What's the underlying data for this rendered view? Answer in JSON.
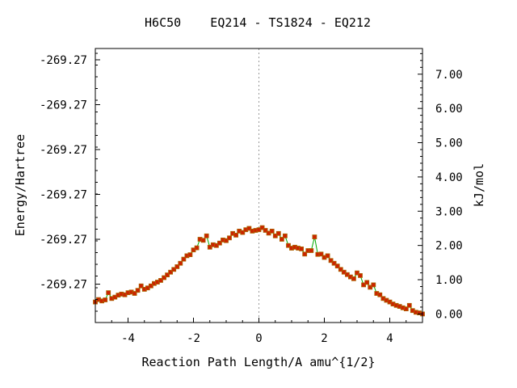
{
  "chart_data": {
    "type": "scatter",
    "title": "H6C50    EQ214 - TS1824 - EQ212",
    "xlabel": "Reaction Path Length/A amu^{1/2}",
    "ylabel": "Energy/Hartree",
    "y2label": "kJ/mol",
    "xlim": [
      -5,
      5
    ],
    "y2lim": [
      -0.25,
      7.75
    ],
    "x_ticks": [
      -4,
      -2,
      0,
      2,
      4
    ],
    "x_tick_labels": [
      "-4",
      "-2",
      "0",
      "2",
      "4"
    ],
    "y_tick_labels": [
      "-269.27",
      "-269.27",
      "-269.27",
      "-269.27",
      "-269.27",
      "-269.27"
    ],
    "y_tick_positions_kj": [
      7.42,
      6.11,
      4.8,
      3.49,
      2.18,
      0.87
    ],
    "y2_ticks": [
      0,
      1,
      2,
      3,
      4,
      5,
      6,
      7
    ],
    "y2_tick_labels": [
      "0.00",
      "1.00",
      "2.00",
      "3.00",
      "4.00",
      "5.00",
      "6.00",
      "7.00"
    ],
    "grid": false,
    "ts_marker_x": 0,
    "colors": {
      "line": "#00aa00",
      "marker": "#cc2200",
      "marker_edge": "#aa6600",
      "ts_line": "#999999"
    },
    "series": [
      {
        "x": [
          -5.0,
          -4.9,
          -4.8,
          -4.7,
          -4.6,
          -4.5,
          -4.4,
          -4.3,
          -4.2,
          -4.1,
          -4.0,
          -3.9,
          -3.8,
          -3.7,
          -3.6,
          -3.5,
          -3.4,
          -3.3,
          -3.2,
          -3.1,
          -3.0,
          -2.9,
          -2.8,
          -2.7,
          -2.6,
          -2.5,
          -2.4,
          -2.3,
          -2.2,
          -2.1,
          -2.0,
          -1.9,
          -1.8,
          -1.7,
          -1.6,
          -1.5,
          -1.4,
          -1.3,
          -1.2,
          -1.1,
          -1.0,
          -0.9,
          -0.8,
          -0.7,
          -0.6,
          -0.5,
          -0.4,
          -0.3,
          -0.2,
          -0.1,
          0.0,
          0.1,
          0.2,
          0.3,
          0.4,
          0.5,
          0.6,
          0.7,
          0.8,
          0.9,
          1.0,
          1.1,
          1.2,
          1.3,
          1.4,
          1.5,
          1.6,
          1.7,
          1.8,
          1.9,
          2.0,
          2.1,
          2.2,
          2.3,
          2.4,
          2.5,
          2.6,
          2.7,
          2.8,
          2.9,
          3.0,
          3.1,
          3.2,
          3.3,
          3.4,
          3.5,
          3.6,
          3.7,
          3.8,
          3.9,
          4.0,
          4.1,
          4.2,
          4.3,
          4.4,
          4.5,
          4.6,
          4.7,
          4.8,
          4.9,
          5.0
        ],
        "y": [
          0.35,
          0.42,
          0.38,
          0.41,
          0.62,
          0.45,
          0.49,
          0.55,
          0.58,
          0.56,
          0.62,
          0.64,
          0.6,
          0.69,
          0.82,
          0.72,
          0.76,
          0.82,
          0.89,
          0.93,
          0.98,
          1.06,
          1.14,
          1.22,
          1.3,
          1.38,
          1.48,
          1.6,
          1.7,
          1.73,
          1.87,
          1.93,
          2.18,
          2.15,
          2.28,
          1.95,
          2.02,
          2.0,
          2.07,
          2.16,
          2.14,
          2.22,
          2.35,
          2.3,
          2.42,
          2.38,
          2.46,
          2.5,
          2.42,
          2.44,
          2.46,
          2.52,
          2.44,
          2.36,
          2.42,
          2.28,
          2.35,
          2.18,
          2.28,
          2.0,
          1.92,
          1.95,
          1.92,
          1.9,
          1.75,
          1.85,
          1.85,
          2.25,
          1.74,
          1.75,
          1.65,
          1.7,
          1.56,
          1.48,
          1.4,
          1.3,
          1.22,
          1.15,
          1.08,
          1.03,
          1.2,
          1.12,
          0.85,
          0.92,
          0.78,
          0.85,
          0.6,
          0.56,
          0.45,
          0.4,
          0.35,
          0.29,
          0.25,
          0.22,
          0.18,
          0.15,
          0.25,
          0.1,
          0.05,
          0.03,
          0.0
        ]
      }
    ]
  }
}
